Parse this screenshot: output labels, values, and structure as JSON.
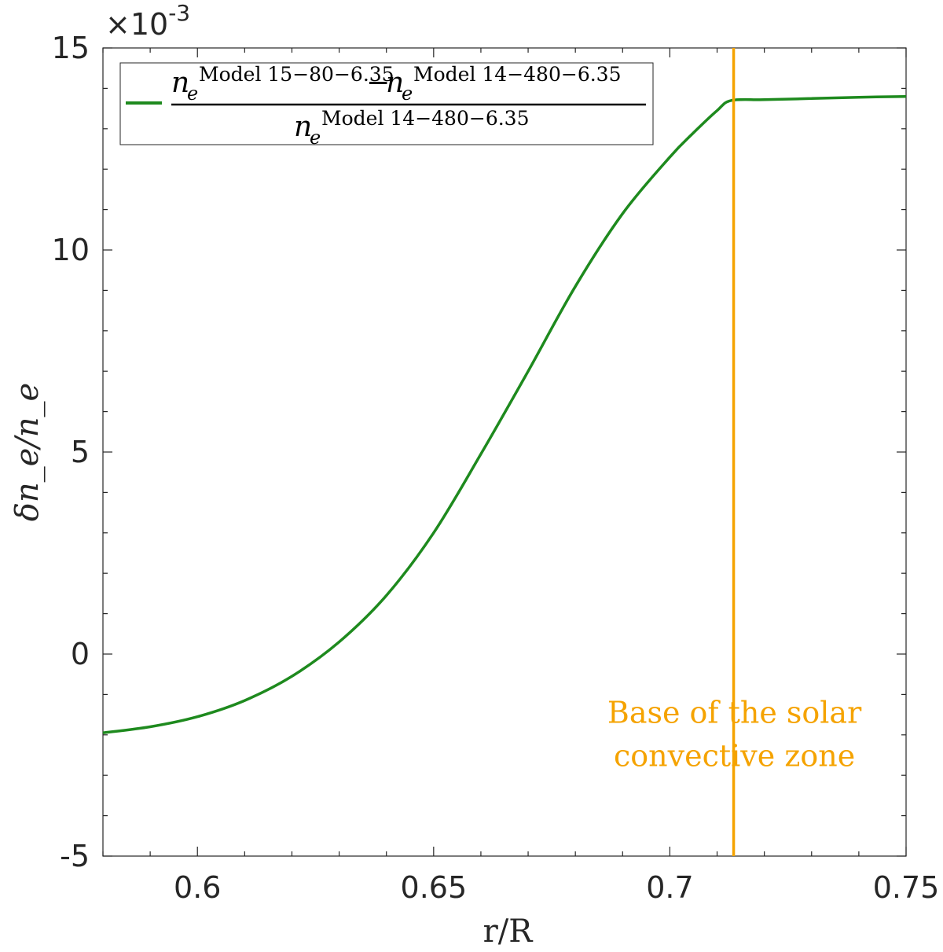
{
  "chart_data": {
    "type": "line",
    "xlabel": "r/R",
    "ylabel": "δn_e/n_e",
    "exponent_label": "×10",
    "exponent_power": "-3",
    "xlim": [
      0.58,
      0.75
    ],
    "ylim": [
      -5,
      15
    ],
    "x_ticks": [
      0.6,
      0.65,
      0.7,
      0.75
    ],
    "x_tick_labels": [
      "0.6",
      "0.65",
      "0.7",
      "0.75"
    ],
    "y_ticks": [
      -5,
      0,
      5,
      10,
      15
    ],
    "y_tick_labels": [
      "-5",
      "0",
      "5",
      "10",
      "15"
    ],
    "grid": false,
    "legend_position": "top-left",
    "series": [
      {
        "name_parts": {
          "num_left_base": "n",
          "num_left_sub": "e",
          "num_left_sup": "Model 15−80−6.35",
          "minus": "−",
          "num_right_base": "n",
          "num_right_sub": "e",
          "num_right_sup": "Model 14−480−6.35",
          "den_base": "n",
          "den_sub": "e",
          "den_sup": "Model 14−480−6.35"
        },
        "color": "#1e8a1e",
        "x": [
          0.58,
          0.59,
          0.6,
          0.61,
          0.62,
          0.63,
          0.64,
          0.65,
          0.66,
          0.67,
          0.68,
          0.69,
          0.7,
          0.705,
          0.71,
          0.713,
          0.72,
          0.73,
          0.74,
          0.75
        ],
        "y": [
          -1.95,
          -1.8,
          -1.55,
          -1.15,
          -0.55,
          0.3,
          1.45,
          3.0,
          4.95,
          7.0,
          9.1,
          10.9,
          12.3,
          12.9,
          13.45,
          13.7,
          13.72,
          13.75,
          13.78,
          13.8
        ]
      }
    ],
    "vline": {
      "x": 0.7135,
      "color": "#f5a300",
      "annotation_lines": [
        "Base of the solar",
        "convective zone"
      ],
      "annotation_at": [
        0.715,
        -1.7
      ]
    }
  }
}
